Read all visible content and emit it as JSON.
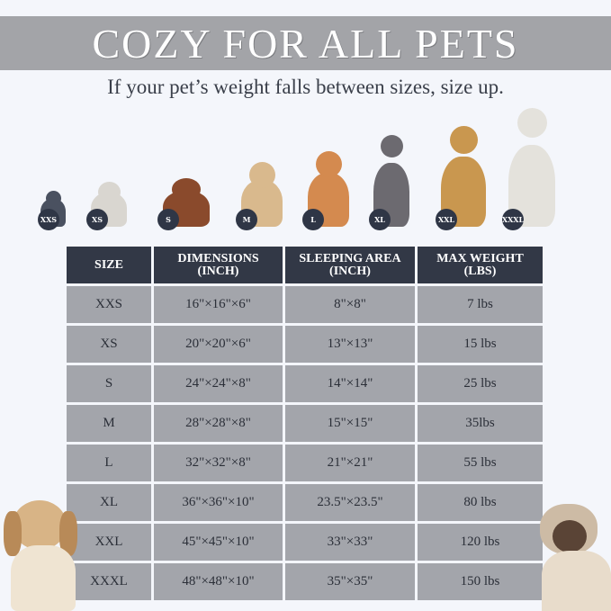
{
  "header": {
    "title": "COZY FOR ALL PETS",
    "subtitle": "If your pet’s weight falls between sizes, size up."
  },
  "pets": [
    {
      "size": "XXS",
      "color": "#4a5160"
    },
    {
      "size": "XS",
      "color": "#d9d6d0"
    },
    {
      "size": "S",
      "color": "#8a4a2c"
    },
    {
      "size": "M",
      "color": "#d9b98d"
    },
    {
      "size": "L",
      "color": "#d48a4f"
    },
    {
      "size": "XL",
      "color": "#6c6a70"
    },
    {
      "size": "XXL",
      "color": "#c9974f"
    },
    {
      "size": "XXXL",
      "color": "#e4e2dc"
    }
  ],
  "table": {
    "headers": [
      "SIZE",
      "DIMENSIONS\n(INCH)",
      "SLEEPING AREA\n(INCH)",
      "MAX WEIGHT\n(LBS)"
    ],
    "rows": [
      [
        "XXS",
        "16\"×16\"×6\"",
        "8\"×8\"",
        "7 lbs"
      ],
      [
        "XS",
        "20\"×20\"×6\"",
        "13\"×13\"",
        "15 lbs"
      ],
      [
        "S",
        "24\"×24\"×8\"",
        "14\"×14\"",
        "25 lbs"
      ],
      [
        "M",
        "28\"×28\"×8\"",
        "15\"×15\"",
        "35lbs"
      ],
      [
        "L",
        "32\"×32\"×8\"",
        "21\"×21\"",
        "55 lbs"
      ],
      [
        "XL",
        "36\"×36\"×10\"",
        "23.5\"×23.5\"",
        "80 lbs"
      ],
      [
        "XXL",
        "45\"×45\"×10\"",
        "33\"×33\"",
        "120 lbs"
      ],
      [
        "XXXL",
        "48\"×48\"×10\"",
        "35\"×35\"",
        "150 lbs"
      ]
    ]
  },
  "decor": {
    "left_pet": "dog",
    "right_pet": "siamese-cat"
  }
}
